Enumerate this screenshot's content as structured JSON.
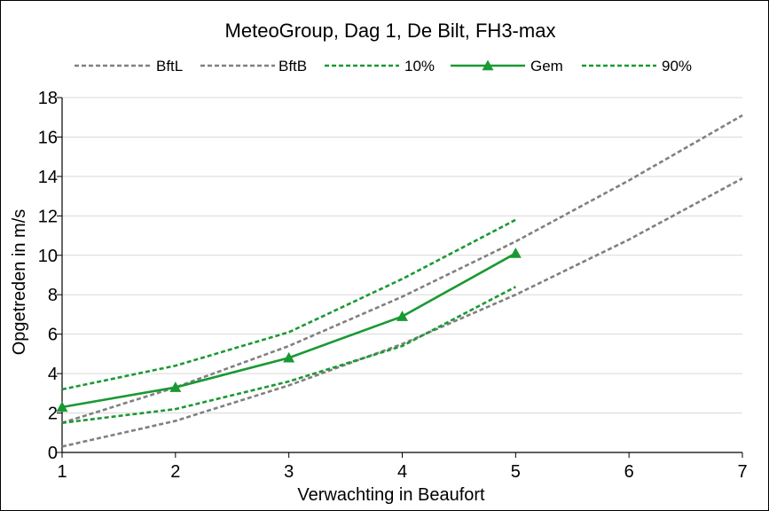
{
  "chart_data": {
    "type": "line",
    "title": "MeteoGroup, Dag 1, De Bilt, FH3-max",
    "xlabel": "Verwachting in Beaufort",
    "ylabel": "Opgetreden in m/s",
    "xlim": [
      1,
      7
    ],
    "ylim": [
      0,
      18
    ],
    "xticks": [
      "1",
      "2",
      "3",
      "4",
      "5",
      "6",
      "7"
    ],
    "yticks": [
      "0",
      "2",
      "4",
      "6",
      "8",
      "10",
      "12",
      "14",
      "16",
      "18"
    ],
    "grid": true,
    "legend_position": "top",
    "series": [
      {
        "name": "BftL",
        "color": "#808080",
        "style": "dashed",
        "marker": "none",
        "x": [
          1,
          2,
          3,
          4,
          5,
          6,
          7
        ],
        "y": [
          0.3,
          1.6,
          3.4,
          5.5,
          8.0,
          10.8,
          13.9
        ]
      },
      {
        "name": "BftB",
        "color": "#808080",
        "style": "dashed",
        "marker": "none",
        "x": [
          1,
          2,
          3,
          4,
          5,
          6,
          7
        ],
        "y": [
          1.5,
          3.3,
          5.4,
          7.9,
          10.7,
          13.8,
          17.1
        ]
      },
      {
        "name": "10%",
        "color": "#1a9933",
        "style": "dashed",
        "marker": "none",
        "x": [
          1,
          2,
          3,
          4,
          5
        ],
        "y": [
          1.5,
          2.2,
          3.6,
          5.4,
          8.4
        ]
      },
      {
        "name": "Gem",
        "color": "#1a9933",
        "style": "solid",
        "marker": "triangle",
        "x": [
          1,
          2,
          3,
          4,
          5
        ],
        "y": [
          2.3,
          3.3,
          4.8,
          6.9,
          10.1
        ]
      },
      {
        "name": "90%",
        "color": "#1a9933",
        "style": "dashed",
        "marker": "none",
        "x": [
          1,
          2,
          3,
          4,
          5
        ],
        "y": [
          3.2,
          4.4,
          6.1,
          8.8,
          11.8
        ]
      }
    ]
  }
}
